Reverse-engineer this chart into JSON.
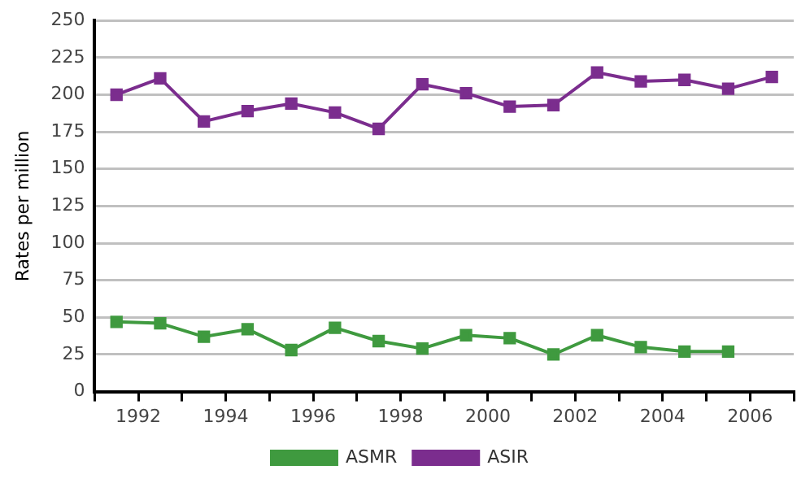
{
  "chart_data": {
    "type": "line",
    "ylabel": "Rates per million",
    "xlim": [
      1991,
      2007
    ],
    "xticks": [
      {
        "value": 1991,
        "label": null
      },
      1992,
      {
        "value": 1993,
        "label": null
      },
      1994,
      {
        "value": 1995,
        "label": null
      },
      1996,
      {
        "value": 1997,
        "label": null
      },
      1998,
      {
        "value": 1999,
        "label": null
      },
      2000,
      {
        "value": 2001,
        "label": null
      },
      2002,
      {
        "value": 2003,
        "label": null
      },
      2004,
      {
        "value": 2005,
        "label": null
      },
      2006,
      {
        "value": 2007,
        "label": null
      }
    ],
    "ylim": [
      0,
      250
    ],
    "yticks": [
      0,
      25,
      50,
      75,
      100,
      125,
      150,
      175,
      200,
      225,
      250
    ],
    "grid": "y",
    "legend": "bottom",
    "marker": "square",
    "line_style": "solid",
    "series": [
      {
        "name": "ASMR",
        "color": "#3f9a3f",
        "x": [
          1991.5,
          1992.5,
          1993.5,
          1994.5,
          1995.5,
          1996.5,
          1997.5,
          1998.5,
          1999.5,
          2000.5,
          2001.5,
          2002.5,
          2003.5,
          2004.5,
          2005.5
        ],
        "values": [
          47,
          46,
          37,
          42,
          28,
          43,
          34,
          29,
          38,
          36,
          25,
          38,
          30,
          27,
          27
        ]
      },
      {
        "name": "ASIR",
        "color": "#7b2d8e",
        "x": [
          1991.5,
          1992.5,
          1993.5,
          1994.5,
          1995.5,
          1996.5,
          1997.5,
          1998.5,
          1999.5,
          2000.5,
          2001.5,
          2002.5,
          2003.5,
          2004.5,
          2005.5,
          2006.5
        ],
        "values": [
          200,
          211,
          182,
          189,
          194,
          188,
          177,
          207,
          201,
          192,
          193,
          215,
          209,
          210,
          204,
          212
        ]
      }
    ]
  }
}
